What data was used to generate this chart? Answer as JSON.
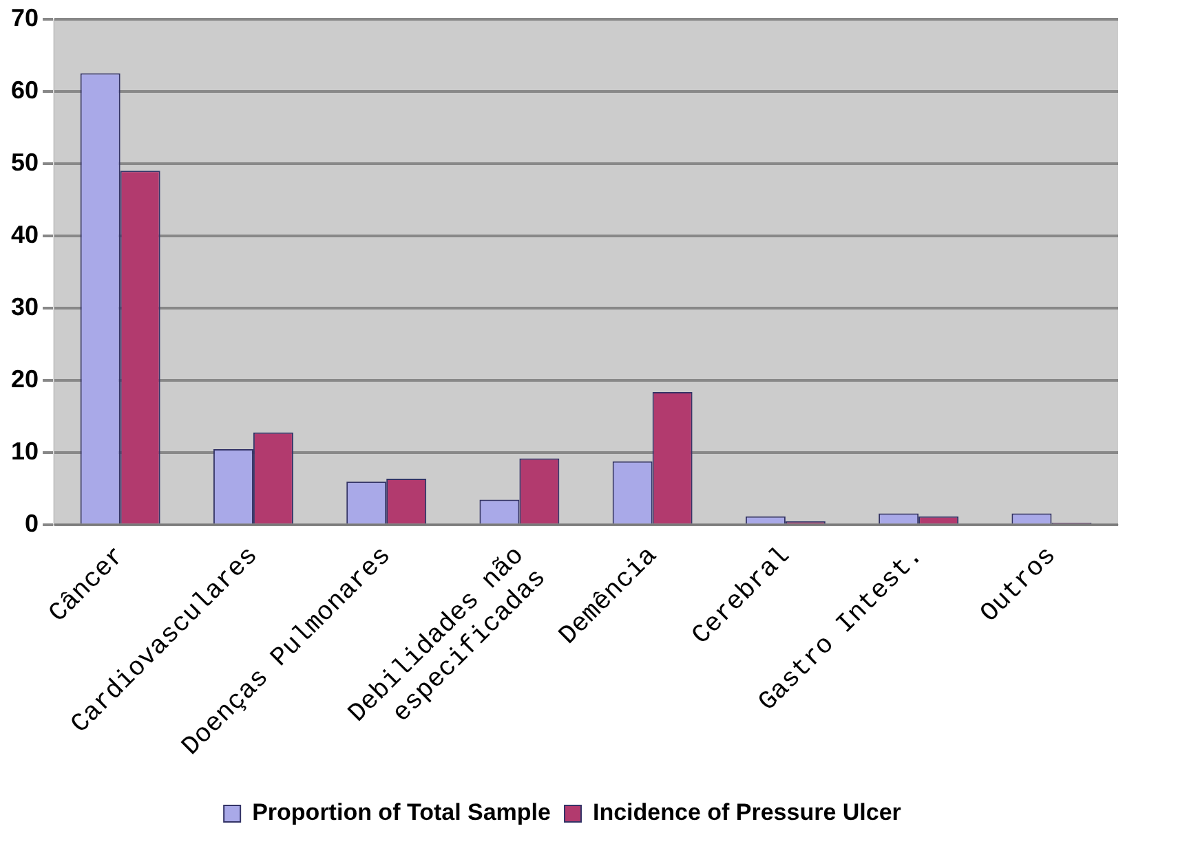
{
  "chart_data": {
    "type": "bar",
    "categories": [
      "Câncer",
      "Cardiovasculares",
      "Doenças Pulmonares",
      "Debilidades não\nespecificadas",
      "Demência",
      "Cerebral",
      "Gastro Intest.",
      "Outros"
    ],
    "series": [
      {
        "name": "Proportion of Total Sample",
        "color": "#a9a9e8",
        "values": [
          62.5,
          10.5,
          6,
          3.5,
          8.8,
          1.2,
          1.6,
          1.6
        ]
      },
      {
        "name": "Incidence of Pressure Ulcer",
        "color": "#b23a6e",
        "values": [
          49,
          12.8,
          6.4,
          9.2,
          18.4,
          0.5,
          1.2,
          0.3
        ]
      }
    ],
    "ylim": [
      0,
      70
    ],
    "yticks": [
      0,
      10,
      20,
      30,
      40,
      50,
      60,
      70
    ],
    "grid": "y",
    "legend": "bottom"
  }
}
